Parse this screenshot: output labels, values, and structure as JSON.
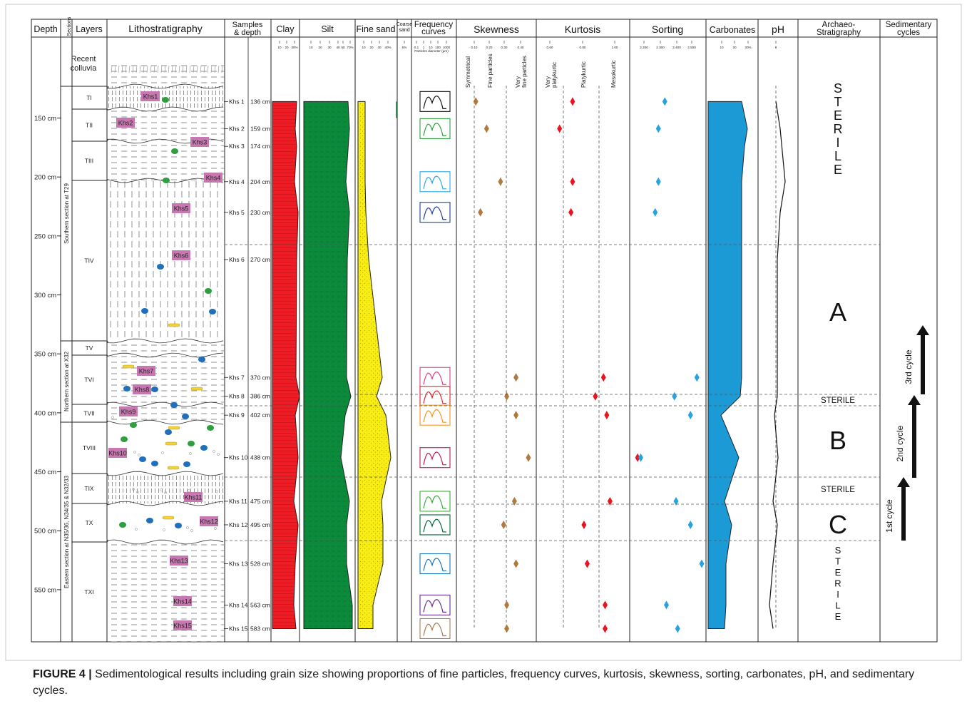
{
  "headers": {
    "depth": "Depth",
    "sections": "Sections",
    "layers": "Layers",
    "litho": "Lithostratigraphy",
    "samples": "Samples",
    "samples2": "& depth",
    "clay": "Clay",
    "silt": "Silt",
    "fine_sand": "Fine sand",
    "coarse_sand_1": "Coarse",
    "coarse_sand_2": "sand",
    "freq_1": "Frequency",
    "freq_2": "curves",
    "skewness": "Skewness",
    "kurtosis": "Kurtosis",
    "sorting": "Sorting",
    "carbonates": "Carbonates",
    "ph": "pH",
    "archaeo_1": "Archaeo-",
    "archaeo_2": "Stratigraphy",
    "cycles_1": "Sedimentary",
    "cycles_2": "cycles"
  },
  "scale_labels": {
    "clay": [
      "10",
      "20",
      "30%"
    ],
    "silt": [
      "10",
      "20",
      "30",
      "40",
      "50",
      "70%"
    ],
    "fine_sand": [
      "10",
      "20",
      "30",
      "40%"
    ],
    "coarse_sand": [
      "5%"
    ],
    "freq_axis": [
      "0,1",
      "1",
      "10",
      "100",
      "1000"
    ],
    "freq_caption": "Particles diameter (µm)",
    "skewness": [
      "0.10",
      "0.20",
      "0.30",
      "0.40"
    ],
    "kurtosis": [
      "0.60",
      "0.80",
      "1.00"
    ],
    "sorting": [
      "2.200",
      "2.300",
      "2.400",
      "2.500"
    ],
    "carbonates": [
      "10",
      "20",
      "30%"
    ],
    "ph": [
      "8"
    ]
  },
  "class_labels": {
    "skew_symmetrical": "Symmetrical",
    "skew_fine": "Fine particles",
    "skew_very_fine_1": "Very",
    "skew_very_fine_2": "fine particles",
    "kurt_very_platy_1": "Very",
    "kurt_very_platy_2": "platykurtic",
    "kurt_platy": "Platykurtic",
    "kurt_meso": "Mesokurtic"
  },
  "depth_ticks": [
    {
      "label": "150 cm",
      "depth": 150
    },
    {
      "label": "200 cm",
      "depth": 200
    },
    {
      "label": "250 cm",
      "depth": 250
    },
    {
      "label": "300 cm",
      "depth": 300
    },
    {
      "label": "350 cm",
      "depth": 350
    },
    {
      "label": "400 cm",
      "depth": 400
    },
    {
      "label": "450 cm",
      "depth": 450
    },
    {
      "label": "500 cm",
      "depth": 500
    },
    {
      "label": "550 cm",
      "depth": 550
    }
  ],
  "sections": [
    {
      "label": "Southern section at T29"
    },
    {
      "label": "Northern section at X32"
    },
    {
      "label": "Eastern section at N35/36, N34/35 & N32/33"
    }
  ],
  "layers": [
    {
      "label": "Recent colluvia"
    },
    {
      "label": "TI"
    },
    {
      "label": "TII"
    },
    {
      "label": "TIII"
    },
    {
      "label": "TIV"
    },
    {
      "label": "TV"
    },
    {
      "label": "TVI"
    },
    {
      "label": "TVII"
    },
    {
      "label": "TVIII"
    },
    {
      "label": "TIX"
    },
    {
      "label": "TX"
    },
    {
      "label": "TXI"
    }
  ],
  "samples": [
    {
      "label": "Khs 1",
      "depth_label": "136 cm",
      "tag": "Khs1",
      "depth": 136,
      "skew": 0.11,
      "kurt": 0.74,
      "sort": 2.33
    },
    {
      "label": "Khs 2",
      "depth_label": "159 cm",
      "tag": "Khs2",
      "depth": 159,
      "skew": 0.18,
      "kurt": 0.66,
      "sort": 2.29
    },
    {
      "label": "Khs 3",
      "depth_label": "174 cm",
      "tag": "Khs3",
      "depth": 174
    },
    {
      "label": "Khs 4",
      "depth_label": "204 cm",
      "tag": "Khs4",
      "depth": 204,
      "skew": 0.27,
      "kurt": 0.74,
      "sort": 2.29
    },
    {
      "label": "Khs 5",
      "depth_label": "230 cm",
      "tag": "Khs5",
      "depth": 230,
      "skew": 0.14,
      "kurt": 0.73,
      "sort": 2.27
    },
    {
      "label": "Khs 6",
      "depth_label": "270 cm",
      "tag": "Khs6",
      "depth": 270
    },
    {
      "label": "Khs 7",
      "depth_label": "370 cm",
      "tag": "Khs7",
      "depth": 370,
      "skew": 0.37,
      "kurt": 0.93,
      "sort": 2.53
    },
    {
      "label": "Khs 8",
      "depth_label": "386 cm",
      "tag": "Khs8",
      "depth": 386,
      "skew": 0.31,
      "kurt": 0.88,
      "sort": 2.39
    },
    {
      "label": "Khs 9",
      "depth_label": "402 cm",
      "tag": "Khs9",
      "depth": 402,
      "skew": 0.37,
      "kurt": 0.95,
      "sort": 2.49
    },
    {
      "label": "Khs 10",
      "depth_label": "438 cm",
      "tag": "Khs10",
      "depth": 438,
      "skew": 0.45,
      "kurt": 1.14,
      "sort": 2.18
    },
    {
      "label": "Khs 11",
      "depth_label": "475 cm",
      "tag": "Khs11",
      "depth": 475,
      "skew": 0.36,
      "kurt": 0.97,
      "sort": 2.4
    },
    {
      "label": "Khs 12",
      "depth_label": "495 cm",
      "tag": "Khs12",
      "depth": 495,
      "skew": 0.29,
      "kurt": 0.81,
      "sort": 2.49
    },
    {
      "label": "Khs 13",
      "depth_label": "528 cm",
      "tag": "Khs13",
      "depth": 528,
      "skew": 0.37,
      "kurt": 0.83,
      "sort": 2.56
    },
    {
      "label": "Khs 14",
      "depth_label": "563 cm",
      "tag": "Khs14",
      "depth": 563,
      "skew": 0.31,
      "kurt": 0.94,
      "sort": 2.34
    },
    {
      "label": "Khs 15",
      "depth_label": "583 cm",
      "tag": "Khs15",
      "depth": 583,
      "skew": 0.31,
      "kurt": 0.94,
      "sort": 2.41
    }
  ],
  "frequency_curves": [
    {
      "sample": "Khs 1",
      "color": "#111111"
    },
    {
      "sample": "Khs 2",
      "color": "#2e9e3e"
    },
    {
      "sample": "Khs 4",
      "color": "#29a8e0"
    },
    {
      "sample": "Khs 5",
      "color": "#1f3f99"
    },
    {
      "sample": "Khs 7",
      "color": "#e23c8b"
    },
    {
      "sample": "Khs 8",
      "color": "#e2232a"
    },
    {
      "sample": "Khs 9",
      "color": "#f7941d"
    },
    {
      "sample": "Khs 10",
      "color": "#c2185b"
    },
    {
      "sample": "Khs 11",
      "color": "#3aaa35"
    },
    {
      "sample": "Khs 12",
      "color": "#006837"
    },
    {
      "sample": "Khs 13",
      "color": "#1c75bc"
    },
    {
      "sample": "Khs 14",
      "color": "#662d91"
    },
    {
      "sample": "Khs 15",
      "color": "#a97c50"
    }
  ],
  "archaeo": [
    {
      "label": "STERILE",
      "style": "vertical"
    },
    {
      "label": "A",
      "style": "big"
    },
    {
      "label": "STERILE",
      "style": "small"
    },
    {
      "label": "B",
      "style": "big"
    },
    {
      "label": "STERILE",
      "style": "small"
    },
    {
      "label": "C",
      "style": "big"
    },
    {
      "label": "STERILE",
      "style": "vertical"
    }
  ],
  "cycles": [
    {
      "label": "3rd cycle"
    },
    {
      "label": "2nd cycle"
    },
    {
      "label": "1st cycle"
    }
  ],
  "colors": {
    "clay": "#ee1c25",
    "silt": "#0c8a3c",
    "fine_sand": "#f7ec13",
    "carbonates": "#1c9ad6",
    "skewness_marker": "#b07a3e",
    "kurtosis_marker": "#e8141e",
    "sorting_marker": "#29a3df",
    "sample_tag": "#c878b0"
  },
  "caption": {
    "label": "FIGURE 4 |",
    "text": " Sedimentological results including grain size showing proportions of fine particles, frequency curves, kurtosis, skewness, sorting, carbonates, pH, and sedimentary cycles."
  }
}
